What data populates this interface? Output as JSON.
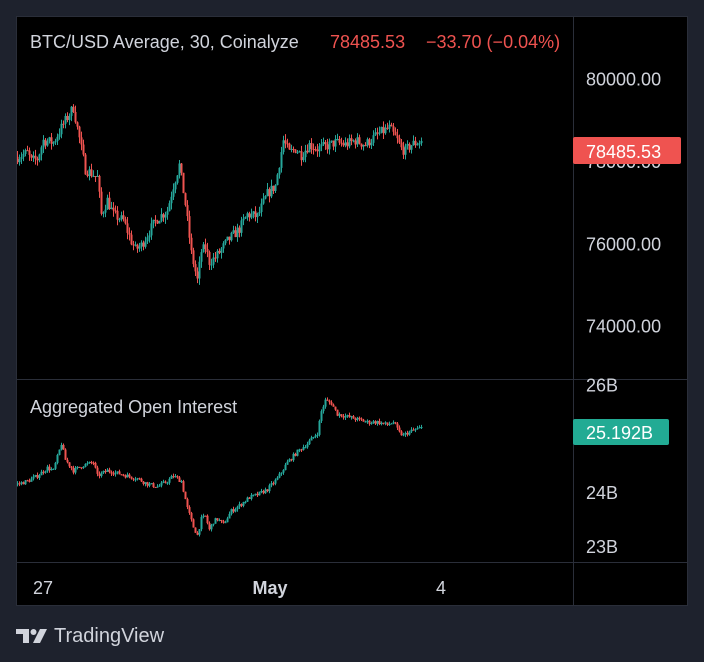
{
  "colors": {
    "background": "#1e222d",
    "panel": "#000000",
    "grid": "#2a2e39",
    "text": "#d1d4dc",
    "up": "#26a69a",
    "down": "#ef5350",
    "price_badge": "#ef5350",
    "oi_badge": "#22ab94"
  },
  "header": {
    "symbol": "BTC/USD Average, 30, Coinalyze",
    "last_value": "78485.53",
    "change": "−33.70 (−0.04%)"
  },
  "oi_title": "Aggregated Open Interest",
  "price_badge": "78485.53",
  "oi_badge": "25.192B",
  "brand": {
    "name": "TradingView",
    "logo_icon": "tradingview-logo-icon"
  },
  "chart_data": [
    {
      "type": "line",
      "title": "BTC/USD Average, 30, Coinalyze",
      "ylim": [
        72700,
        81500
      ],
      "yticks": [
        {
          "value": 80000,
          "label": "80000.00"
        },
        {
          "value": 78000,
          "label": "78000.00"
        },
        {
          "value": 76000,
          "label": "76000.00"
        },
        {
          "value": 74000,
          "label": "74000.00"
        }
      ],
      "last_value": 78485.53,
      "change": "−33.70 (−0.04%)",
      "x_index": [
        0,
        10,
        14,
        20,
        26,
        36,
        46,
        56,
        68,
        80,
        84,
        90,
        96,
        106,
        114,
        118,
        124,
        132,
        140,
        150,
        156,
        162,
        168,
        174,
        180,
        184,
        188,
        192,
        198,
        204,
        210,
        216,
        222,
        230,
        240,
        250,
        258,
        266,
        272,
        278,
        284,
        292,
        300,
        308,
        318,
        328,
        338,
        348,
        358,
        364,
        372,
        380,
        384,
        388,
        394,
        404
      ],
      "values": [
        78100,
        78200,
        78000,
        78050,
        78500,
        78450,
        78900,
        79300,
        77800,
        77600,
        76700,
        77050,
        76700,
        76550,
        76050,
        75850,
        75950,
        76300,
        76600,
        76800,
        77400,
        77900,
        76950,
        75750,
        75100,
        75800,
        75900,
        75550,
        75650,
        75850,
        76050,
        76200,
        76350,
        76700,
        76650,
        77200,
        77400,
        78500,
        78200,
        78300,
        78150,
        78400,
        78300,
        78350,
        78450,
        78400,
        78500,
        78400,
        78600,
        78700,
        78800,
        78500,
        78300,
        78250,
        78400,
        78485.53
      ]
    },
    {
      "type": "line",
      "title": "Aggregated Open Interest",
      "ylim": [
        22.7,
        26.1
      ],
      "yticks": [
        {
          "value": 26,
          "label": "26B"
        },
        {
          "value": 25,
          "label": "25B"
        },
        {
          "value": 24,
          "label": "24B"
        },
        {
          "value": 23,
          "label": "23B"
        }
      ],
      "last_value": 25.192,
      "x_index": [
        0,
        10,
        20,
        30,
        36,
        44,
        48,
        56,
        66,
        76,
        80,
        90,
        100,
        110,
        120,
        130,
        140,
        150,
        156,
        164,
        170,
        176,
        180,
        184,
        188,
        192,
        196,
        200,
        206,
        214,
        222,
        232,
        240,
        250,
        260,
        270,
        280,
        290,
        300,
        304,
        308,
        314,
        320,
        330,
        340,
        350,
        360,
        370,
        376,
        382,
        386,
        390,
        396,
        404
      ],
      "values": [
        24.15,
        24.2,
        24.3,
        24.45,
        24.4,
        24.9,
        24.6,
        24.4,
        24.5,
        24.55,
        24.3,
        24.4,
        24.35,
        24.3,
        24.25,
        24.15,
        24.1,
        24.2,
        24.3,
        24.2,
        23.7,
        23.35,
        23.2,
        23.5,
        23.55,
        23.3,
        23.45,
        23.5,
        23.4,
        23.65,
        23.75,
        23.9,
        23.95,
        24.05,
        24.25,
        24.55,
        24.75,
        24.9,
        25.1,
        25.5,
        25.7,
        25.65,
        25.45,
        25.4,
        25.35,
        25.3,
        25.3,
        25.25,
        25.3,
        25.1,
        25.05,
        25.1,
        25.15,
        25.192
      ]
    }
  ],
  "x_axis": {
    "labels": [
      {
        "text": "27",
        "index": 26,
        "bold": false
      },
      {
        "text": "May",
        "index": 253,
        "bold": true
      },
      {
        "text": "4",
        "index": 424,
        "bold": false
      }
    ]
  }
}
